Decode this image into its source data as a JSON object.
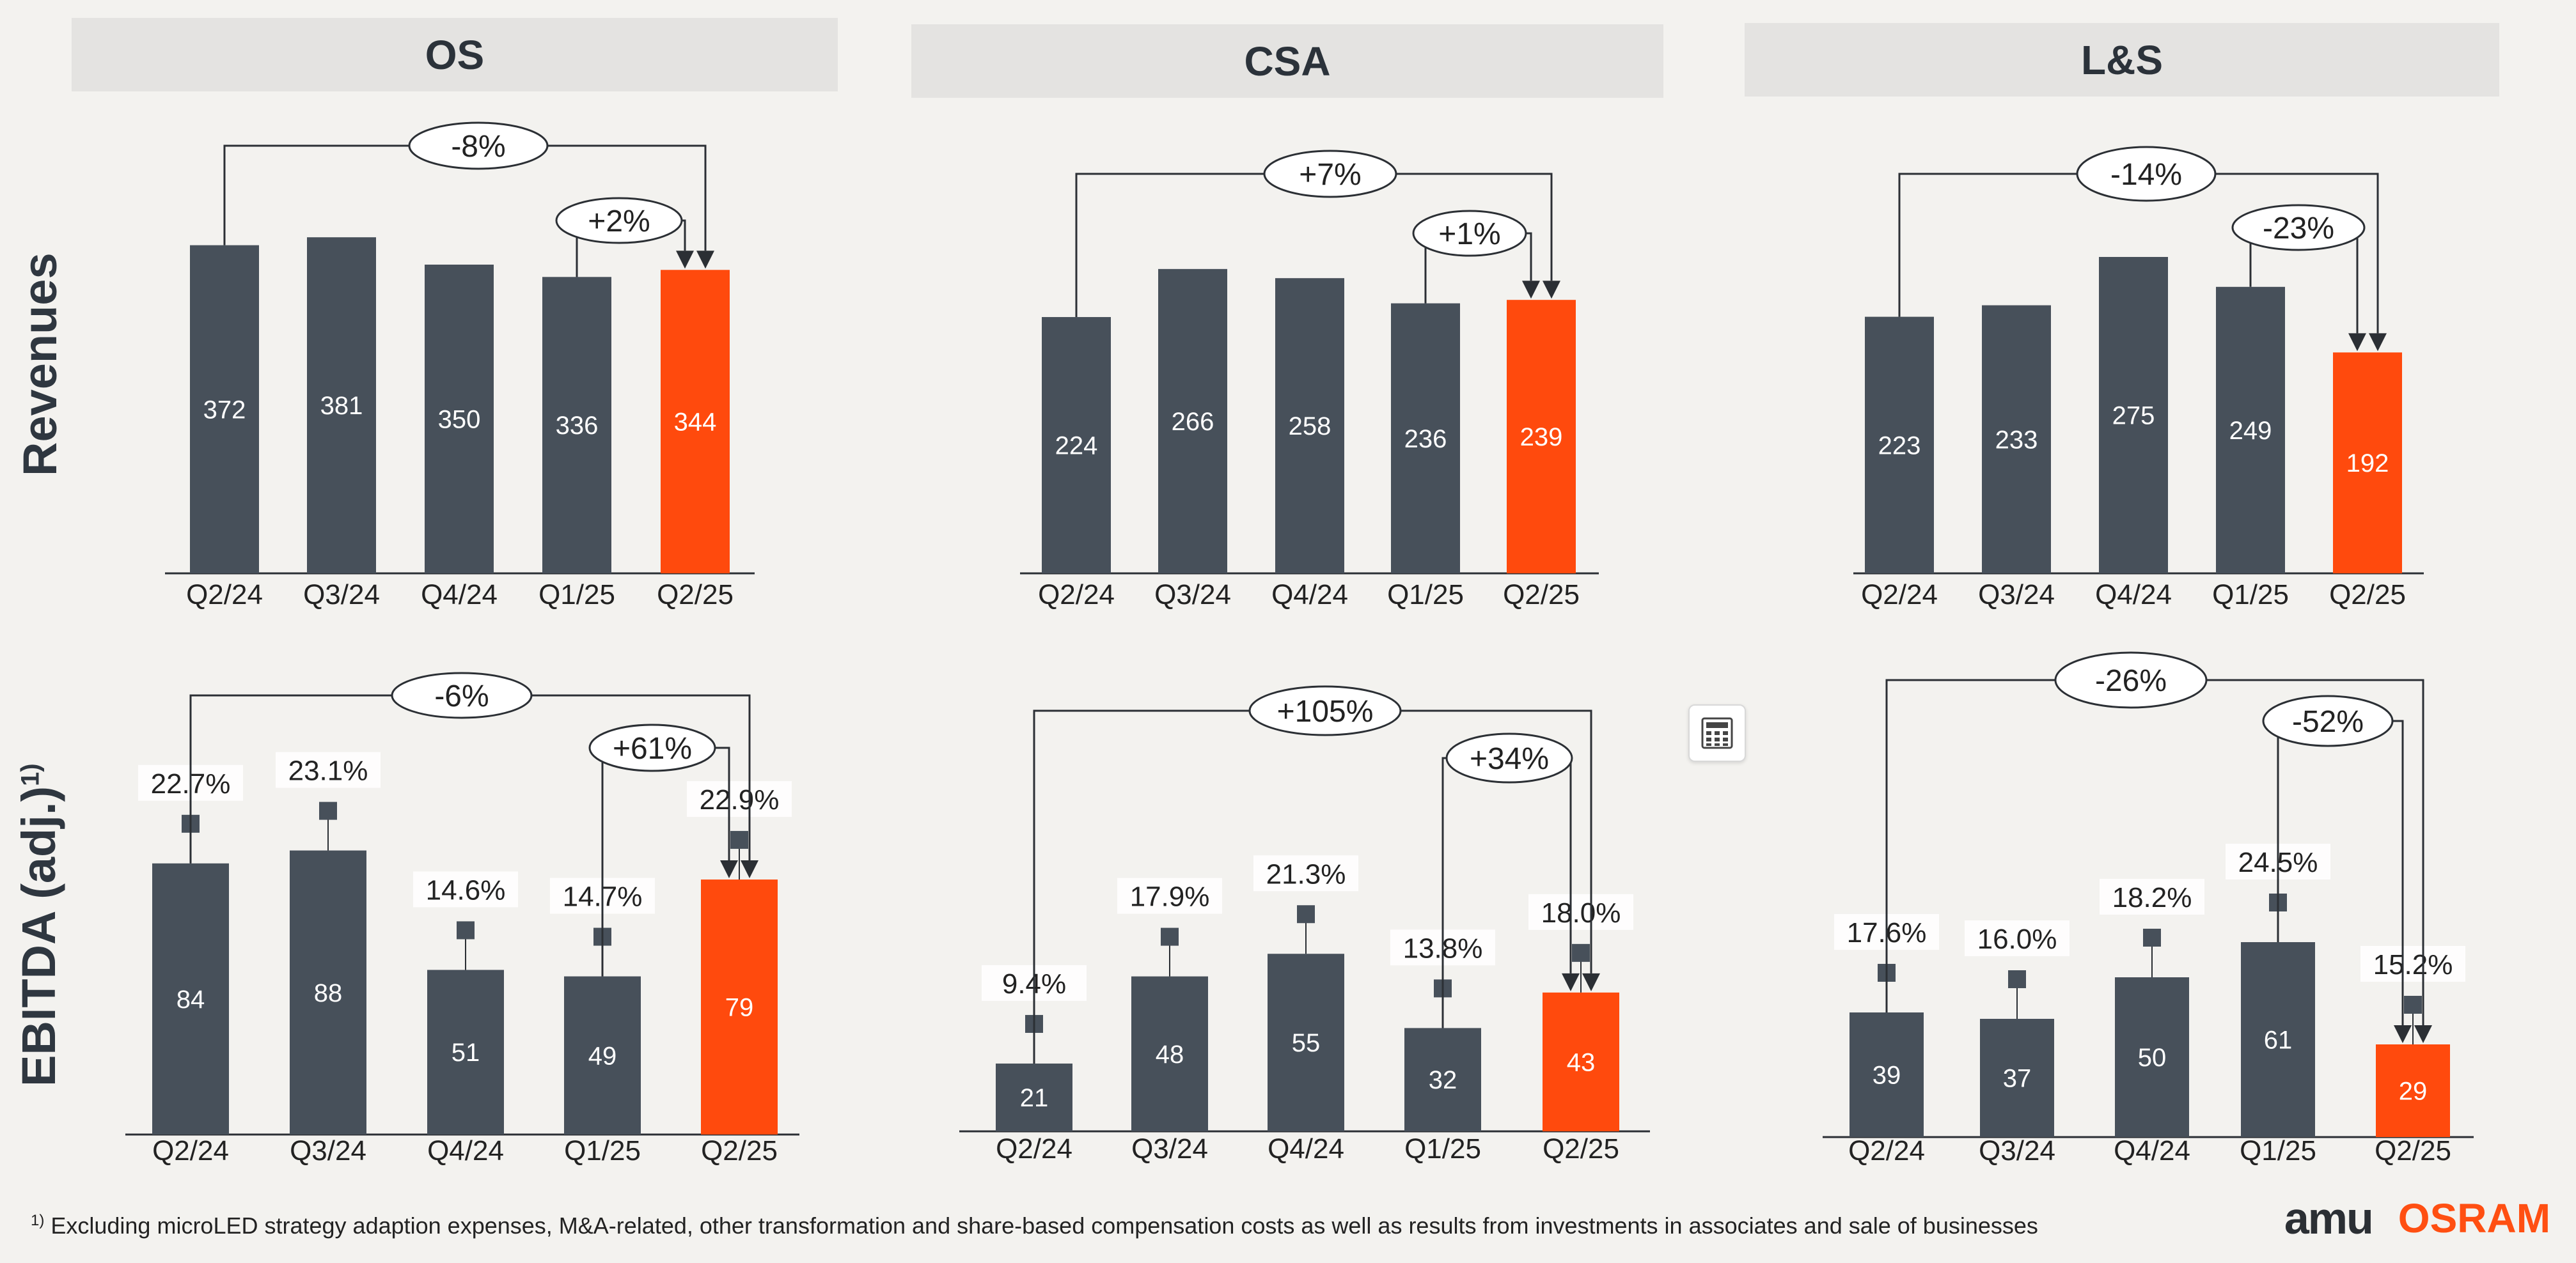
{
  "headers": [
    "OS",
    "CSA",
    "L&S"
  ],
  "row_labels": {
    "revenues": "Revenues",
    "ebitda": "EBITDA (adj.)",
    "ebitda_sup": "1)"
  },
  "colors": {
    "bar": "#47505a",
    "highlight": "#ff4a0d",
    "line": "#2b2f34"
  },
  "footnote": {
    "marker": "1)",
    "text": "Excluding microLED strategy adaption expenses, M&A-related, other transformation and share-based compensation costs as well as results from investments in associates and sale of businesses"
  },
  "logos": {
    "ams": "amu",
    "osram": "OSRAM"
  },
  "chart_data": [
    {
      "segment": "OS",
      "metric": "Revenues",
      "type": "bar",
      "categories": [
        "Q2/24",
        "Q3/24",
        "Q4/24",
        "Q1/25",
        "Q2/25"
      ],
      "values": [
        372,
        381,
        350,
        336,
        344
      ],
      "highlight_index": 4,
      "yoy_label": "-8%",
      "qoq_label": "+2%"
    },
    {
      "segment": "CSA",
      "metric": "Revenues",
      "type": "bar",
      "categories": [
        "Q2/24",
        "Q3/24",
        "Q4/24",
        "Q1/25",
        "Q2/25"
      ],
      "values": [
        224,
        266,
        258,
        236,
        239
      ],
      "highlight_index": 4,
      "yoy_label": "+7%",
      "qoq_label": "+1%"
    },
    {
      "segment": "L&S",
      "metric": "Revenues",
      "type": "bar",
      "categories": [
        "Q2/24",
        "Q3/24",
        "Q4/24",
        "Q1/25",
        "Q2/25"
      ],
      "values": [
        223,
        233,
        275,
        249,
        192
      ],
      "highlight_index": 4,
      "yoy_label": "-14%",
      "qoq_label": "-23%"
    },
    {
      "segment": "OS",
      "metric": "EBITDA (adj.)",
      "type": "bar",
      "categories": [
        "Q2/24",
        "Q3/24",
        "Q4/24",
        "Q1/25",
        "Q2/25"
      ],
      "values": [
        84,
        88,
        51,
        49,
        79
      ],
      "margins": [
        "22.7%",
        "23.1%",
        "14.6%",
        "14.7%",
        "22.9%"
      ],
      "highlight_index": 4,
      "yoy_label": "-6%",
      "qoq_label": "+61%"
    },
    {
      "segment": "CSA",
      "metric": "EBITDA (adj.)",
      "type": "bar",
      "categories": [
        "Q2/24",
        "Q3/24",
        "Q4/24",
        "Q1/25",
        "Q2/25"
      ],
      "values": [
        21,
        48,
        55,
        32,
        43
      ],
      "margins": [
        "9.4%",
        "17.9%",
        "21.3%",
        "13.8%",
        "18.0%"
      ],
      "highlight_index": 4,
      "yoy_label": "+105%",
      "qoq_label": "+34%"
    },
    {
      "segment": "L&S",
      "metric": "EBITDA (adj.)",
      "type": "bar",
      "categories": [
        "Q2/24",
        "Q3/24",
        "Q4/24",
        "Q1/25",
        "Q2/25"
      ],
      "values": [
        39,
        37,
        50,
        61,
        29
      ],
      "margins": [
        "17.6%",
        "16.0%",
        "18.2%",
        "24.5%",
        "15.2%"
      ],
      "highlight_index": 4,
      "yoy_label": "-26%",
      "qoq_label": "-52%"
    }
  ]
}
